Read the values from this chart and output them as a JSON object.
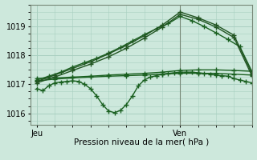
{
  "background_color": "#cde8dc",
  "grid_color": "#a8cfc0",
  "xlabel": "Pression niveau de la mer( hPa )",
  "xtick_labels": [
    "Jeu",
    "Ven"
  ],
  "xtick_positions": [
    0,
    24
  ],
  "ylim": [
    1015.6,
    1019.75
  ],
  "yticks": [
    1016,
    1017,
    1018,
    1019
  ],
  "xlim": [
    -1,
    36
  ],
  "vline_x": 24,
  "series": [
    {
      "x": [
        0,
        1,
        2,
        3,
        4,
        5,
        6,
        7,
        8,
        9,
        10,
        11,
        12,
        13,
        14,
        15,
        16,
        17,
        18,
        19,
        20,
        21,
        22,
        23,
        24,
        25,
        26,
        27,
        28,
        29,
        30,
        31,
        32,
        33,
        34,
        35,
        36
      ],
      "y": [
        1016.85,
        1016.78,
        1016.95,
        1017.05,
        1017.08,
        1017.1,
        1017.12,
        1017.1,
        1017.0,
        1016.85,
        1016.6,
        1016.3,
        1016.08,
        1016.02,
        1016.1,
        1016.3,
        1016.6,
        1016.95,
        1017.15,
        1017.25,
        1017.3,
        1017.35,
        1017.38,
        1017.4,
        1017.42,
        1017.42,
        1017.42,
        1017.4,
        1017.38,
        1017.35,
        1017.32,
        1017.3,
        1017.28,
        1017.2,
        1017.15,
        1017.1,
        1017.05
      ],
      "marker": "+",
      "markersize": 4,
      "linewidth": 1.0,
      "color": "#1a6020"
    },
    {
      "x": [
        0,
        3,
        6,
        9,
        12,
        15,
        18,
        21,
        24,
        27,
        30,
        33,
        36
      ],
      "y": [
        1017.12,
        1017.18,
        1017.22,
        1017.25,
        1017.28,
        1017.3,
        1017.32,
        1017.35,
        1017.38,
        1017.38,
        1017.38,
        1017.35,
        1017.32
      ],
      "marker": "+",
      "markersize": 4,
      "linewidth": 1.0,
      "color": "#1a6020"
    },
    {
      "x": [
        0,
        3,
        6,
        9,
        12,
        15,
        18,
        21,
        24,
        27,
        30,
        33,
        36
      ],
      "y": [
        1017.2,
        1017.22,
        1017.25,
        1017.28,
        1017.32,
        1017.35,
        1017.38,
        1017.42,
        1017.48,
        1017.5,
        1017.5,
        1017.48,
        1017.45
      ],
      "marker": "+",
      "markersize": 4,
      "linewidth": 1.0,
      "color": "#1a6020"
    },
    {
      "x": [
        0,
        2,
        4,
        6,
        8,
        10,
        12,
        14,
        16,
        18,
        20,
        22,
        24,
        26,
        28,
        30,
        32,
        34,
        36
      ],
      "y": [
        1017.15,
        1017.28,
        1017.42,
        1017.6,
        1017.75,
        1017.9,
        1018.08,
        1018.28,
        1018.5,
        1018.72,
        1018.92,
        1019.1,
        1019.35,
        1019.2,
        1019.0,
        1018.78,
        1018.55,
        1018.3,
        1017.45
      ],
      "marker": "+",
      "markersize": 4,
      "linewidth": 1.0,
      "color": "#1a6020"
    },
    {
      "x": [
        0,
        3,
        6,
        9,
        12,
        15,
        18,
        21,
        24,
        27,
        30,
        33,
        36
      ],
      "y": [
        1017.1,
        1017.32,
        1017.55,
        1017.78,
        1018.05,
        1018.35,
        1018.68,
        1019.05,
        1019.5,
        1019.3,
        1019.05,
        1018.7,
        1017.38
      ],
      "marker": "+",
      "markersize": 4,
      "linewidth": 1.0,
      "color": "#225522"
    },
    {
      "x": [
        0,
        3,
        6,
        9,
        12,
        15,
        18,
        21,
        24,
        27,
        30,
        33,
        36
      ],
      "y": [
        1017.05,
        1017.25,
        1017.48,
        1017.7,
        1017.95,
        1018.25,
        1018.6,
        1018.98,
        1019.42,
        1019.25,
        1018.98,
        1018.62,
        1017.3
      ],
      "marker": "+",
      "markersize": 4,
      "linewidth": 1.0,
      "color": "#225522"
    }
  ]
}
